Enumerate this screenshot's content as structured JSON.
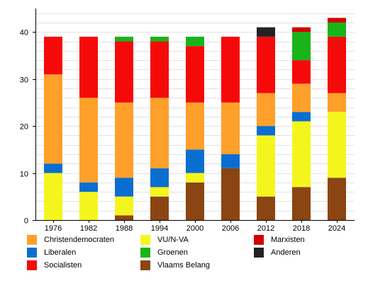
{
  "chart_data": {
    "type": "bar",
    "stacked": true,
    "categories": [
      "1976",
      "1982",
      "1988",
      "1994",
      "2000",
      "2006",
      "2012",
      "2018",
      "2024"
    ],
    "ylim": [
      0,
      45
    ],
    "yticks": [
      0,
      10,
      20,
      30,
      40
    ],
    "grid": true,
    "legend_position": "bottom",
    "series": [
      {
        "name": "Vlaams Belang",
        "color": "#8b4513",
        "values": [
          0,
          0,
          1,
          5,
          8,
          11,
          5,
          7,
          9
        ]
      },
      {
        "name": "VU/N-VA",
        "color": "#f5f51e",
        "values": [
          10,
          6,
          4,
          2,
          2,
          0,
          13,
          14,
          14
        ]
      },
      {
        "name": "Liberalen",
        "color": "#0a6ed1",
        "values": [
          2,
          2,
          4,
          4,
          5,
          3,
          2,
          2,
          0
        ]
      },
      {
        "name": "Christendemocraten",
        "color": "#ffa02a",
        "values": [
          19,
          18,
          16,
          15,
          10,
          11,
          7,
          6,
          4
        ]
      },
      {
        "name": "Socialisten",
        "color": "#f50a0a",
        "values": [
          8,
          13,
          13,
          12,
          12,
          14,
          12,
          5,
          12
        ]
      },
      {
        "name": "Groenen",
        "color": "#19b419",
        "values": [
          0,
          0,
          1,
          1,
          2,
          0,
          0,
          6,
          3
        ]
      },
      {
        "name": "Marxisten",
        "color": "#d20000",
        "values": [
          0,
          0,
          0,
          0,
          0,
          0,
          0,
          1,
          1
        ]
      },
      {
        "name": "Anderen",
        "color": "#222222",
        "values": [
          0,
          0,
          0,
          0,
          0,
          0,
          2,
          0,
          0
        ]
      }
    ],
    "legend_order": [
      "Christendemocraten",
      "Liberalen",
      "Socialisten",
      "VU/N-VA",
      "Groenen",
      "Vlaams Belang",
      "Marxisten",
      "Anderen"
    ]
  }
}
